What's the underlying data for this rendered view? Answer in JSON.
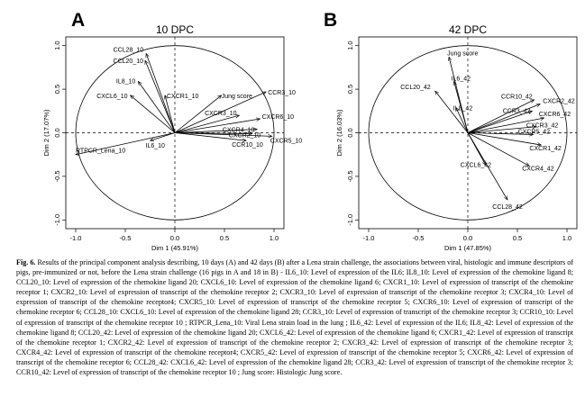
{
  "figure": {
    "panels": [
      {
        "id": "A",
        "letter": "A",
        "title": "10 DPC",
        "chart_data": {
          "type": "scatter",
          "subtype": "pca-biplot",
          "title": "10 DPC",
          "xlabel": "Dim 1 (45.91%)",
          "ylabel": "Dim 2 (17.07%)",
          "xlim": [
            -1.1,
            1.1
          ],
          "ylim": [
            -1.1,
            1.1
          ],
          "xticks": [
            "-1.0",
            "-0.5",
            "0.0",
            "0.5",
            "1.0"
          ],
          "yticks": [
            "-1.0",
            "-0.5",
            "0.0",
            "0.5",
            "1.0"
          ],
          "vectors": [
            {
              "label": "CCL28_10",
              "x": -0.29,
              "y": 0.91
            },
            {
              "label": "CCL20_10",
              "x": -0.3,
              "y": 0.83
            },
            {
              "label": "IL8_10",
              "x": -0.37,
              "y": 0.59
            },
            {
              "label": "CXCL6_10",
              "x": -0.45,
              "y": 0.43
            },
            {
              "label": "CXCR1_10",
              "x": -0.1,
              "y": 0.43
            },
            {
              "label": "Jung score",
              "x": 0.47,
              "y": 0.43
            },
            {
              "label": "CCR3_10",
              "x": 0.92,
              "y": 0.47
            },
            {
              "label": "CXCR3_10",
              "x": 0.65,
              "y": 0.2
            },
            {
              "label": "CXCR6_10",
              "x": 0.86,
              "y": 0.16
            },
            {
              "label": "CXCR4_10",
              "x": 0.83,
              "y": 0.04
            },
            {
              "label": "CXCR2_10",
              "x": 0.78,
              "y": -0.01
            },
            {
              "label": "CXCR5_10",
              "x": 0.98,
              "y": -0.04
            },
            {
              "label": "CCR10_10",
              "x": 0.72,
              "y": -0.09
            },
            {
              "label": "IL6_10",
              "x": -0.25,
              "y": -0.09
            },
            {
              "label": "RTPCR_Lena_10",
              "x": -1.0,
              "y": -0.25
            }
          ]
        }
      },
      {
        "id": "B",
        "letter": "B",
        "title": "42 DPC",
        "chart_data": {
          "type": "scatter",
          "subtype": "pca-biplot",
          "title": "42 DPC",
          "xlabel": "Dim 1 (47.85%)",
          "ylabel": "Dim 2 (16.03%)",
          "xlim": [
            -1.1,
            1.1
          ],
          "ylim": [
            -1.1,
            1.1
          ],
          "xticks": [
            "-1.0",
            "-0.5",
            "0.0",
            "0.5",
            "1.0"
          ],
          "yticks": [
            "-1.0",
            "-0.5",
            "0.0",
            "0.5",
            "1.0"
          ],
          "vectors": [
            {
              "label": "Jung score",
              "x": -0.19,
              "y": 0.87
            },
            {
              "label": "IL6_42",
              "x": -0.14,
              "y": 0.59
            },
            {
              "label": "CCL20_42",
              "x": -0.33,
              "y": 0.48
            },
            {
              "label": "IL8_42",
              "x": -0.12,
              "y": 0.29
            },
            {
              "label": "CCR10_42",
              "x": 0.67,
              "y": 0.38
            },
            {
              "label": "CXCR2_42",
              "x": 0.73,
              "y": 0.33
            },
            {
              "label": "CCR3_42",
              "x": 0.65,
              "y": 0.25
            },
            {
              "label": "CXCR6_42",
              "x": 0.77,
              "y": 0.17
            },
            {
              "label": "CXCR3_42",
              "x": 0.69,
              "y": 0.07
            },
            {
              "label": "CXCR5_42",
              "x": 0.66,
              "y": -0.02
            },
            {
              "label": "CXCR1_42",
              "x": 0.74,
              "y": -0.14
            },
            {
              "label": "CXCR4_42",
              "x": 0.62,
              "y": -0.38
            },
            {
              "label": "CXCL6_42",
              "x": 0.18,
              "y": -0.37
            },
            {
              "label": "CCL28_42",
              "x": 0.4,
              "y": -0.77
            }
          ]
        }
      }
    ],
    "caption": {
      "label": "Fig. 6.",
      "text": " Results of the principal component analysis describing, 10 days (A) and 42 days (B) after a Lena strain challenge, the associations between viral, histologic and immune descriptors of pigs, pre-immunized or not, before the Lena strain challenge (16 pigs in A and 18 in B) - IL6_10: Level of expression of the IL6; IL8_10: Level of expression of the chemokine ligand 8; CCL20_10: Level of expression of the chemokine ligand 20; CXCL6_10: Level of expression of the chemokine ligand 6; CXCR1_10: Level of expression of transcript of the chemokine receptor 1; CXCR2_10: Level of expression of transcript of the chemokine receptor 2; CXCR3_10: Level of expression of transcript of the chemokine receptor 3; CXCR4_10: Level of expression of transcript of the chemokine receptor4; CXCR5_10: Level of expression of transcript of the chemokine receptor 5; CXCR6_10: Level of expression of transcript of the chemokine receptor 6; CCL28_10: CXCL6_10: Level of expression of the chemokine ligand 28; CCR3_10: Level of expression of transcript of the chemokine receptor 3; CCR10_10: Level of expression of transcript of the chemokine receptor 10 ; RTPCR_Lena_10: Viral Lena strain load in the lung ; IL6_42: Level of expression of the IL6; IL8_42: Level of expression of the chemokine ligand 8; CCL20_42: Level of expression of the chemokine ligand 20; CXCL6_42: Level of expression of the chemokine ligand 6; CXCR1_42: Level of expression of transcript of the chemokine receptor 1; CXCR2_42: Level of expression of transcript of the chemokine receptor 2; CXCR3_42: Level of expression of transcript of the chemokine receptor 3; CXCR4_42: Level of expression of transcript of the chemokine receptor4; CXCR5_42: Level of expression of transcript of the chemokine receptor 5; CXCR6_42: Level of expression of transcript of the chemokine receptor 6; CCL28_42: CXCL6_42: Level of expression of the chemokine ligand 28; CCR3_42: Level of expression of transcript of the chemokine receptor 3; CCR10_42: Level of expression of transcript of the chemokine receptor 10 ; Jung score: Histologic Jung score."
    }
  }
}
